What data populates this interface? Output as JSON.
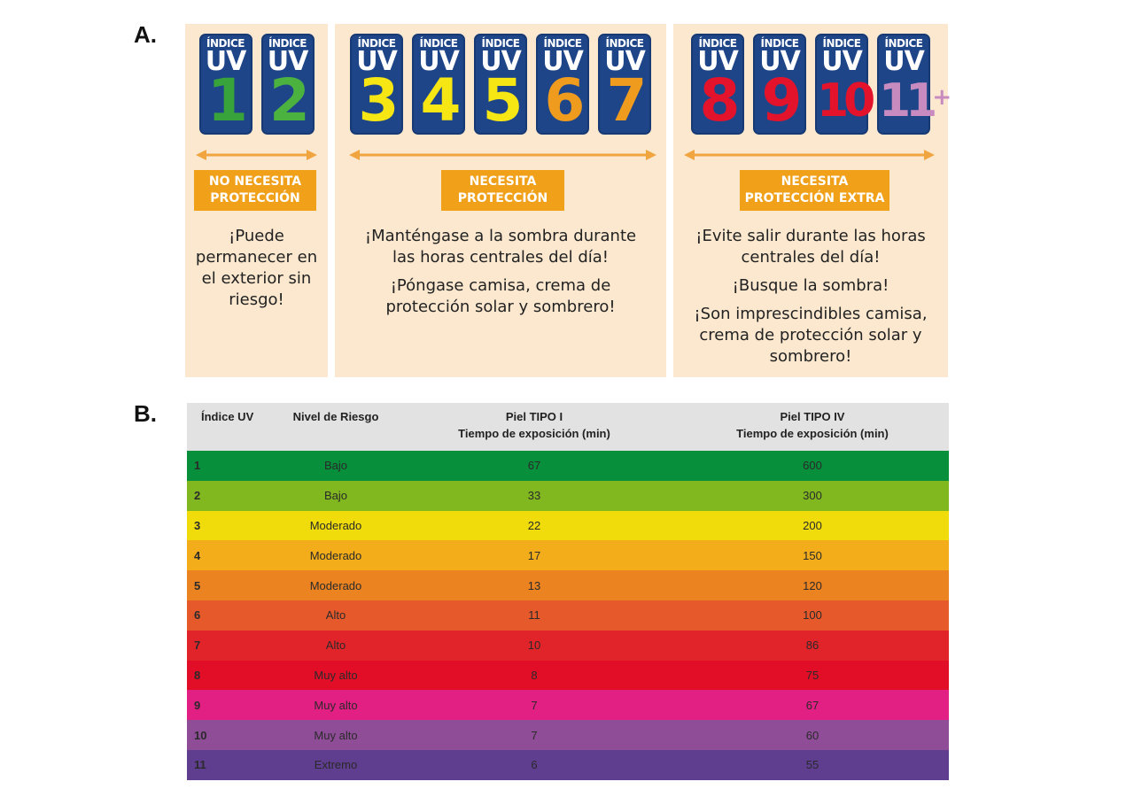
{
  "labels": {
    "a": "A.",
    "b": "B."
  },
  "badge_header": {
    "top": "ÍNDICE",
    "uv": "UV"
  },
  "panels": [
    {
      "badges": [
        {
          "num": "1",
          "color": "#37a33a"
        },
        {
          "num": "2",
          "color": "#4bb240"
        }
      ],
      "label_lines": [
        "NO NECESITA",
        "PROTECCIÓN"
      ],
      "advice": [
        "¡Puede permanecer en el exterior sin riesgo!"
      ]
    },
    {
      "badges": [
        {
          "num": "3",
          "color": "#f5e614"
        },
        {
          "num": "4",
          "color": "#f5e614"
        },
        {
          "num": "5",
          "color": "#f5e614"
        },
        {
          "num": "6",
          "color": "#ef9b1d"
        },
        {
          "num": "7",
          "color": "#ef9b1d"
        }
      ],
      "label_lines": [
        "NECESITA",
        "PROTECCIÓN"
      ],
      "advice": [
        "¡Manténgase a la sombra durante las horas centrales del día!",
        "¡Póngase camisa, crema de protección solar y sombrero!"
      ]
    },
    {
      "badges": [
        {
          "num": "8",
          "color": "#e3132b"
        },
        {
          "num": "9",
          "color": "#e3132b"
        },
        {
          "num": "10",
          "color": "#e3132b"
        },
        {
          "num": "11",
          "sup": "+",
          "color": "#c88bc0"
        }
      ],
      "label_lines": [
        "NECESITA",
        "PROTECCIÓN EXTRA"
      ],
      "advice": [
        "¡Evite salir durante las horas centrales del día!",
        "¡Busque la sombra!",
        "¡Son imprescindibles camisa, crema de protección solar y sombrero!"
      ]
    }
  ],
  "table": {
    "headers": {
      "idx": "Índice UV",
      "risk": "Nivel de Riesgo",
      "t1_line1": "Piel TIPO I",
      "t1_line2": "Tiempo de exposición (min)",
      "t4_line1": "Piel TIPO IV",
      "t4_line2": "Tiempo de exposición (min)"
    },
    "rows": [
      {
        "idx": "1",
        "risk": "Bajo",
        "t1": "67",
        "t4": "600",
        "color": "#078f3b"
      },
      {
        "idx": "2",
        "risk": "Bajo",
        "t1": "33",
        "t4": "300",
        "color": "#82b81f"
      },
      {
        "idx": "3",
        "risk": "Moderado",
        "t1": "22",
        "t4": "200",
        "color": "#f1dc0b"
      },
      {
        "idx": "4",
        "risk": "Moderado",
        "t1": "17",
        "t4": "150",
        "color": "#f3ac1a"
      },
      {
        "idx": "5",
        "risk": "Moderado",
        "t1": "13",
        "t4": "120",
        "color": "#ec8321"
      },
      {
        "idx": "6",
        "risk": "Alto",
        "t1": "11",
        "t4": "100",
        "color": "#e6592b"
      },
      {
        "idx": "7",
        "risk": "Alto",
        "t1": "10",
        "t4": "86",
        "color": "#e12429"
      },
      {
        "idx": "8",
        "risk": "Muy alto",
        "t1": "8",
        "t4": "75",
        "color": "#e20e27"
      },
      {
        "idx": "9",
        "risk": "Muy alto",
        "t1": "7",
        "t4": "67",
        "color": "#e21f83"
      },
      {
        "idx": "10",
        "risk": "Muy alto",
        "t1": "7",
        "t4": "60",
        "color": "#8f4c97"
      },
      {
        "idx": "11",
        "risk": "Extremo",
        "t1": "6",
        "t4": "55",
        "color": "#5f3d8f"
      }
    ]
  }
}
